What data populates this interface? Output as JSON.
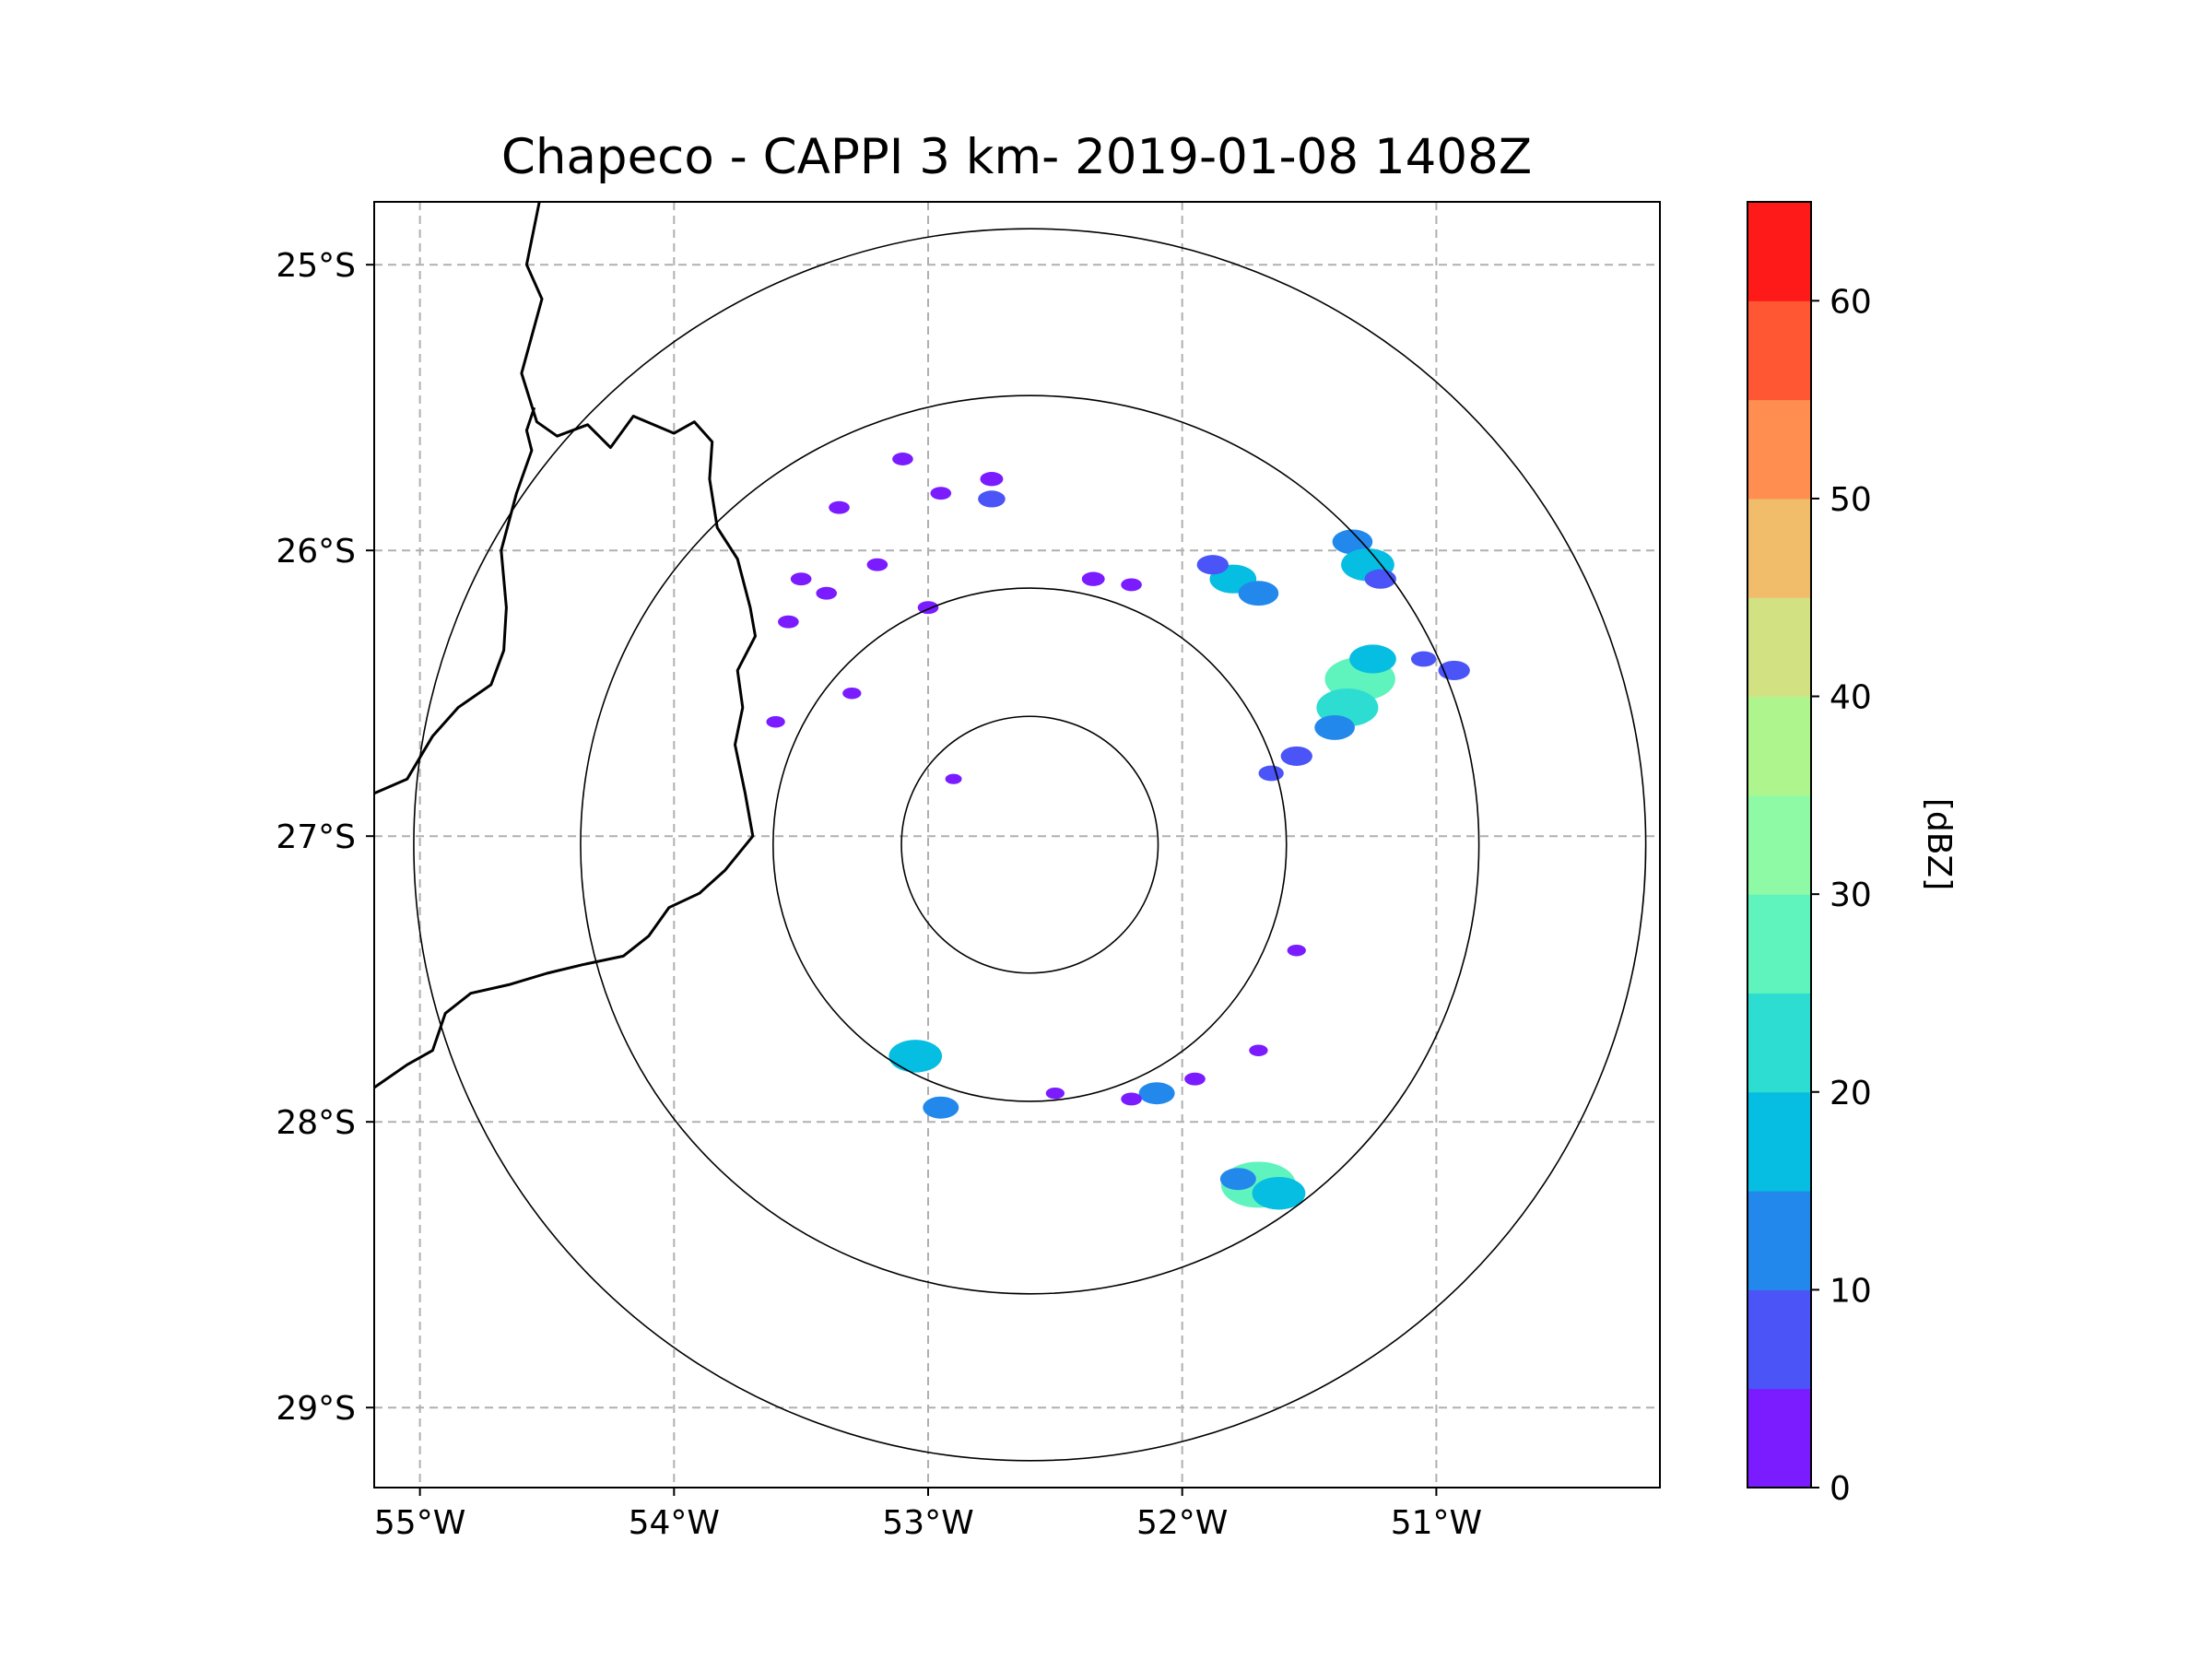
{
  "chart_data": {
    "type": "heatmap",
    "subtype": "radar-ppi-map",
    "title": "Chapeco - CAPPI 3 km- 2019-01-08 1408Z",
    "radar": {
      "name": "Chapeco",
      "lon": -52.6,
      "lat": -27.03
    },
    "x_axis": {
      "lim": [
        -55.18,
        -50.12
      ],
      "ticks": [
        -55,
        -54,
        -53,
        -52,
        -51
      ],
      "tick_labels": [
        "55°W",
        "54°W",
        "53°W",
        "52°W",
        "51°W"
      ]
    },
    "y_axis": {
      "lim": [
        -29.28,
        -24.78
      ],
      "ticks": [
        -25,
        -26,
        -27,
        -28,
        -29
      ],
      "tick_labels": [
        "25°S",
        "26°S",
        "27°S",
        "28°S",
        "29°S"
      ]
    },
    "range_rings_km": [
      50,
      100,
      175,
      240
    ],
    "gridlines": "dashed",
    "colorbar": {
      "label": "[dBZ]",
      "min": 0,
      "max": 65,
      "step": 5,
      "ticks": [
        0,
        10,
        20,
        30,
        40,
        50,
        60
      ],
      "tick_labels": [
        "0",
        "10",
        "20",
        "30",
        "40",
        "50",
        "60"
      ],
      "colors": [
        "#7a1cff",
        "#4a54f7",
        "#2388ec",
        "#06bde2",
        "#2dddd2",
        "#5ff3bd",
        "#8ffaa6",
        "#aef58e",
        "#d2e283",
        "#f1bd6b",
        "#ff8e50",
        "#ff5733",
        "#ff1a1a"
      ]
    },
    "boundaries": [
      {
        "name": "parana-border",
        "points": [
          [
            -54.53,
            -24.78
          ],
          [
            -54.58,
            -25.0
          ],
          [
            -54.52,
            -25.12
          ],
          [
            -54.6,
            -25.38
          ],
          [
            -54.54,
            -25.55
          ],
          [
            -54.46,
            -25.6
          ],
          [
            -54.34,
            -25.56
          ],
          [
            -54.25,
            -25.64
          ],
          [
            -54.16,
            -25.53
          ],
          [
            -54.0,
            -25.59
          ],
          [
            -53.92,
            -25.55
          ],
          [
            -53.85,
            -25.62
          ],
          [
            -53.86,
            -25.75
          ],
          [
            -53.83,
            -25.92
          ],
          [
            -53.75,
            -26.03
          ],
          [
            -53.7,
            -26.2
          ],
          [
            -53.68,
            -26.3
          ],
          [
            -53.75,
            -26.42
          ],
          [
            -53.73,
            -26.55
          ],
          [
            -53.76,
            -26.68
          ],
          [
            -53.72,
            -26.85
          ],
          [
            -53.69,
            -27.0
          ],
          [
            -53.8,
            -27.12
          ],
          [
            -53.9,
            -27.2
          ],
          [
            -54.02,
            -27.25
          ],
          [
            -54.1,
            -27.35
          ],
          [
            -54.2,
            -27.42
          ],
          [
            -54.36,
            -27.45
          ],
          [
            -54.5,
            -27.48
          ],
          [
            -54.65,
            -27.52
          ],
          [
            -54.8,
            -27.55
          ],
          [
            -54.9,
            -27.62
          ],
          [
            -54.95,
            -27.75
          ],
          [
            -55.05,
            -27.8
          ],
          [
            -55.18,
            -27.88
          ]
        ]
      },
      {
        "name": "argentina-border",
        "points": [
          [
            -55.18,
            -26.85
          ],
          [
            -55.05,
            -26.8
          ],
          [
            -54.95,
            -26.65
          ],
          [
            -54.85,
            -26.55
          ],
          [
            -54.72,
            -26.47
          ],
          [
            -54.67,
            -26.35
          ],
          [
            -54.66,
            -26.2
          ],
          [
            -54.68,
            -26.0
          ],
          [
            -54.62,
            -25.8
          ],
          [
            -54.56,
            -25.65
          ],
          [
            -54.58,
            -25.58
          ],
          [
            -54.55,
            -25.5
          ]
        ]
      }
    ],
    "echoes": [
      {
        "lon": -51.8,
        "lat": -26.1,
        "dbz": 15
      },
      {
        "lon": -51.7,
        "lat": -26.15,
        "dbz": 12
      },
      {
        "lon": -51.88,
        "lat": -26.05,
        "dbz": 8
      },
      {
        "lon": -51.33,
        "lat": -25.97,
        "dbz": 12
      },
      {
        "lon": -51.27,
        "lat": -26.05,
        "dbz": 18
      },
      {
        "lon": -51.22,
        "lat": -26.1,
        "dbz": 8
      },
      {
        "lon": -51.3,
        "lat": -26.45,
        "dbz": 26
      },
      {
        "lon": -51.35,
        "lat": -26.55,
        "dbz": 22
      },
      {
        "lon": -51.25,
        "lat": -26.38,
        "dbz": 15
      },
      {
        "lon": -51.4,
        "lat": -26.62,
        "dbz": 12
      },
      {
        "lon": -51.55,
        "lat": -26.72,
        "dbz": 8
      },
      {
        "lon": -51.65,
        "lat": -26.78,
        "dbz": 5
      },
      {
        "lon": -51.05,
        "lat": -26.38,
        "dbz": 5
      },
      {
        "lon": -50.93,
        "lat": -26.42,
        "dbz": 8
      },
      {
        "lon": -51.7,
        "lat": -28.22,
        "dbz": 28
      },
      {
        "lon": -51.62,
        "lat": -28.25,
        "dbz": 18
      },
      {
        "lon": -51.78,
        "lat": -28.2,
        "dbz": 10
      },
      {
        "lon": -53.05,
        "lat": -27.77,
        "dbz": 18
      },
      {
        "lon": -52.95,
        "lat": -27.95,
        "dbz": 10
      },
      {
        "lon": -52.1,
        "lat": -27.9,
        "dbz": 10
      },
      {
        "lon": -52.95,
        "lat": -25.8,
        "dbz": 3
      },
      {
        "lon": -52.75,
        "lat": -25.75,
        "dbz": 4
      },
      {
        "lon": -52.75,
        "lat": -25.82,
        "dbz": 6
      },
      {
        "lon": -53.1,
        "lat": -25.68,
        "dbz": 3
      },
      {
        "lon": -53.35,
        "lat": -25.85,
        "dbz": 3
      },
      {
        "lon": -53.5,
        "lat": -26.1,
        "dbz": 3
      },
      {
        "lon": -53.55,
        "lat": -26.25,
        "dbz": 3
      },
      {
        "lon": -53.4,
        "lat": -26.15,
        "dbz": 3
      },
      {
        "lon": -53.2,
        "lat": -26.05,
        "dbz": 3
      },
      {
        "lon": -53.0,
        "lat": -26.2,
        "dbz": 3
      },
      {
        "lon": -52.35,
        "lat": -26.1,
        "dbz": 4
      },
      {
        "lon": -52.2,
        "lat": -26.12,
        "dbz": 3
      },
      {
        "lon": -53.6,
        "lat": -26.6,
        "dbz": 2
      },
      {
        "lon": -53.3,
        "lat": -26.5,
        "dbz": 2
      },
      {
        "lon": -51.95,
        "lat": -27.85,
        "dbz": 3
      },
      {
        "lon": -52.2,
        "lat": -27.92,
        "dbz": 3
      },
      {
        "lon": -51.55,
        "lat": -27.4,
        "dbz": 2
      },
      {
        "lon": -51.7,
        "lat": -27.75,
        "dbz": 2
      },
      {
        "lon": -52.5,
        "lat": -27.9,
        "dbz": 2
      },
      {
        "lon": -52.9,
        "lat": -26.8,
        "dbz": 1
      }
    ]
  }
}
